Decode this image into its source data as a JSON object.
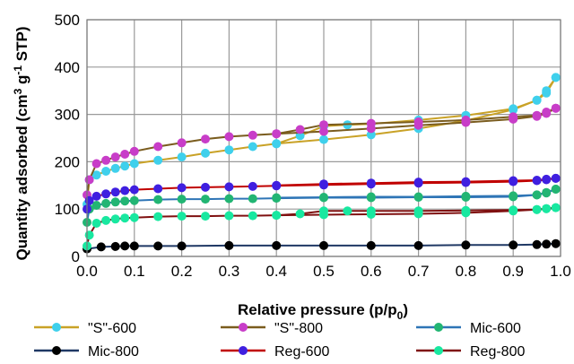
{
  "chart_data": {
    "type": "line",
    "xlabel": "Relative pressure (p/p",
    "xlabel_sub": "0",
    "xlabel_end": ")",
    "ylabel": "Quantity adsorbed (cm",
    "ylabel_sup1": "3",
    "ylabel_mid": " g",
    "ylabel_sup2": "-1",
    "ylabel_end": " STP)",
    "xlim": [
      0,
      1
    ],
    "ylim": [
      0,
      500
    ],
    "xticks": [
      "0.0",
      "0.1",
      "0.2",
      "0.3",
      "0.4",
      "0.5",
      "0.6",
      "0.7",
      "0.8",
      "0.9",
      "1.0"
    ],
    "yticks": [
      "0",
      "100",
      "200",
      "300",
      "400",
      "500"
    ],
    "grid": true,
    "legend_position": "bottom",
    "series": [
      {
        "name": "\"S\"-600",
        "line_color": "#C9A227",
        "marker_color": "#3FD0EC",
        "adsorption": [
          [
            0.0,
            110
          ],
          [
            0.005,
            162
          ],
          [
            0.02,
            172
          ],
          [
            0.04,
            180
          ],
          [
            0.06,
            186
          ],
          [
            0.08,
            191
          ],
          [
            0.1,
            196
          ],
          [
            0.15,
            203
          ],
          [
            0.2,
            210
          ],
          [
            0.25,
            218
          ],
          [
            0.3,
            225
          ],
          [
            0.35,
            232
          ],
          [
            0.4,
            238
          ],
          [
            0.5,
            247
          ],
          [
            0.6,
            257
          ],
          [
            0.7,
            270
          ],
          [
            0.8,
            287
          ],
          [
            0.9,
            310
          ],
          [
            0.95,
            330
          ],
          [
            0.97,
            345
          ],
          [
            0.99,
            378
          ]
        ],
        "desorption": [
          [
            0.99,
            378
          ],
          [
            0.97,
            350
          ],
          [
            0.95,
            330
          ],
          [
            0.9,
            312
          ],
          [
            0.8,
            298
          ],
          [
            0.7,
            288
          ],
          [
            0.6,
            280
          ],
          [
            0.55,
            278
          ],
          [
            0.5,
            275
          ],
          [
            0.45,
            255
          ],
          [
            0.4,
            238
          ]
        ]
      },
      {
        "name": "\"S\"-800",
        "line_color": "#7A5C1E",
        "marker_color": "#C83DC8",
        "adsorption": [
          [
            0.0,
            130
          ],
          [
            0.005,
            162
          ],
          [
            0.02,
            196
          ],
          [
            0.04,
            203
          ],
          [
            0.06,
            210
          ],
          [
            0.08,
            216
          ],
          [
            0.1,
            222
          ],
          [
            0.15,
            232
          ],
          [
            0.2,
            240
          ],
          [
            0.25,
            248
          ],
          [
            0.3,
            253
          ],
          [
            0.35,
            256
          ],
          [
            0.4,
            259
          ],
          [
            0.5,
            264
          ],
          [
            0.6,
            270
          ],
          [
            0.7,
            277
          ],
          [
            0.8,
            283
          ],
          [
            0.9,
            290
          ],
          [
            0.95,
            296
          ],
          [
            0.97,
            302
          ],
          [
            0.99,
            313
          ]
        ],
        "desorption": [
          [
            0.99,
            313
          ],
          [
            0.97,
            305
          ],
          [
            0.95,
            298
          ],
          [
            0.9,
            295
          ],
          [
            0.8,
            288
          ],
          [
            0.7,
            284
          ],
          [
            0.6,
            281
          ],
          [
            0.5,
            278
          ],
          [
            0.45,
            268
          ],
          [
            0.4,
            259
          ]
        ]
      },
      {
        "name": "Mic-600",
        "line_color": "#2E75B6",
        "marker_color": "#22B573",
        "adsorption": [
          [
            0.0,
            72
          ],
          [
            0.005,
            100
          ],
          [
            0.02,
            108
          ],
          [
            0.04,
            112
          ],
          [
            0.06,
            115
          ],
          [
            0.08,
            117
          ],
          [
            0.1,
            118
          ],
          [
            0.15,
            120
          ],
          [
            0.2,
            121
          ],
          [
            0.25,
            121
          ],
          [
            0.3,
            122
          ],
          [
            0.35,
            122
          ],
          [
            0.4,
            123
          ],
          [
            0.5,
            124
          ],
          [
            0.6,
            124
          ],
          [
            0.7,
            125
          ],
          [
            0.8,
            125
          ],
          [
            0.9,
            126
          ],
          [
            0.95,
            130
          ],
          [
            0.97,
            135
          ],
          [
            0.99,
            142
          ]
        ],
        "desorption": [
          [
            0.99,
            142
          ],
          [
            0.97,
            134
          ],
          [
            0.95,
            130
          ],
          [
            0.9,
            128
          ],
          [
            0.8,
            127
          ],
          [
            0.7,
            126
          ],
          [
            0.6,
            126
          ],
          [
            0.5,
            125
          ],
          [
            0.4,
            124
          ]
        ]
      },
      {
        "name": "Mic-800",
        "line_color": "#1F3864",
        "marker_color": "#000000",
        "adsorption": [
          [
            0.0,
            16
          ],
          [
            0.03,
            20
          ],
          [
            0.06,
            21
          ],
          [
            0.08,
            22
          ],
          [
            0.1,
            22
          ],
          [
            0.15,
            22
          ],
          [
            0.2,
            22
          ],
          [
            0.3,
            23
          ],
          [
            0.4,
            23
          ],
          [
            0.5,
            23
          ],
          [
            0.6,
            23
          ],
          [
            0.7,
            23
          ],
          [
            0.8,
            24
          ],
          [
            0.9,
            24
          ],
          [
            0.95,
            25
          ],
          [
            0.97,
            26
          ],
          [
            0.99,
            27
          ]
        ],
        "desorption": []
      },
      {
        "name": "Reg-600",
        "line_color": "#C00000",
        "marker_color": "#3F1FE0",
        "adsorption": [
          [
            0.0,
            100
          ],
          [
            0.005,
            118
          ],
          [
            0.02,
            127
          ],
          [
            0.04,
            132
          ],
          [
            0.06,
            136
          ],
          [
            0.08,
            139
          ],
          [
            0.1,
            141
          ],
          [
            0.15,
            143
          ],
          [
            0.2,
            145
          ],
          [
            0.25,
            146
          ],
          [
            0.3,
            147
          ],
          [
            0.35,
            148
          ],
          [
            0.4,
            149
          ],
          [
            0.5,
            151
          ],
          [
            0.6,
            153
          ],
          [
            0.7,
            155
          ],
          [
            0.8,
            156
          ],
          [
            0.9,
            158
          ],
          [
            0.95,
            160
          ],
          [
            0.97,
            162
          ],
          [
            0.99,
            165
          ]
        ],
        "desorption": [
          [
            0.99,
            165
          ],
          [
            0.97,
            163
          ],
          [
            0.95,
            161
          ],
          [
            0.9,
            160
          ],
          [
            0.8,
            158
          ],
          [
            0.7,
            157
          ],
          [
            0.6,
            155
          ],
          [
            0.5,
            153
          ],
          [
            0.4,
            150
          ]
        ]
      },
      {
        "name": "Reg-800",
        "line_color": "#7F1010",
        "marker_color": "#18E8A0",
        "adsorption": [
          [
            0.0,
            22
          ],
          [
            0.005,
            45
          ],
          [
            0.02,
            70
          ],
          [
            0.04,
            76
          ],
          [
            0.06,
            79
          ],
          [
            0.08,
            81
          ],
          [
            0.1,
            82
          ],
          [
            0.15,
            84
          ],
          [
            0.2,
            85
          ],
          [
            0.25,
            85
          ],
          [
            0.3,
            86
          ],
          [
            0.35,
            86
          ],
          [
            0.4,
            87
          ],
          [
            0.5,
            88
          ],
          [
            0.6,
            89
          ],
          [
            0.7,
            90
          ],
          [
            0.8,
            92
          ],
          [
            0.9,
            96
          ],
          [
            0.95,
            99
          ],
          [
            0.97,
            101
          ],
          [
            0.99,
            103
          ]
        ],
        "desorption": [
          [
            0.99,
            103
          ],
          [
            0.97,
            101
          ],
          [
            0.95,
            99
          ],
          [
            0.9,
            98
          ],
          [
            0.8,
            97
          ],
          [
            0.7,
            96
          ],
          [
            0.6,
            96
          ],
          [
            0.55,
            96
          ],
          [
            0.5,
            96
          ],
          [
            0.45,
            90
          ],
          [
            0.4,
            87
          ]
        ]
      }
    ]
  }
}
